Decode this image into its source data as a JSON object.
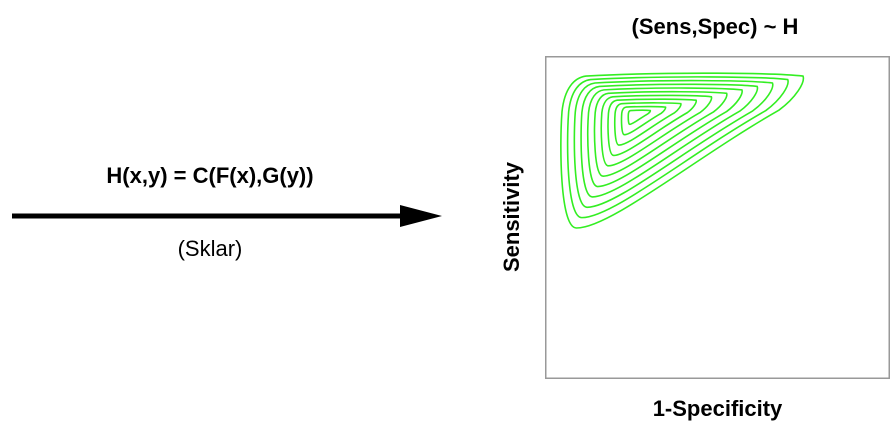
{
  "left_panel": {
    "formula": "H(x,y) = C(F(x),G(y))",
    "subtitle": "(Sklar)"
  },
  "plot": {
    "title": "(Sens,Spec) ~ H",
    "xlabel": "1-Specificity",
    "ylabel": "Sensitivity",
    "contour_color": "#33ee22",
    "contour_levels": 11
  },
  "colors": {
    "arrow": "#000000",
    "frame": "#999999"
  }
}
